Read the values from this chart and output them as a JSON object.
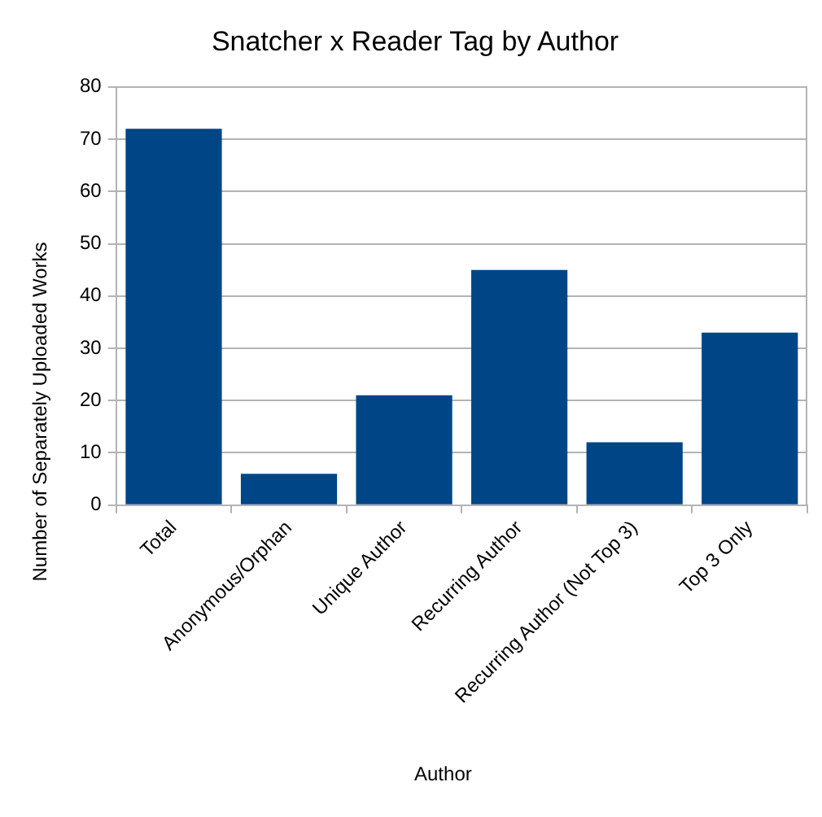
{
  "chart_data": {
    "type": "bar",
    "title": "Snatcher x Reader Tag by Author",
    "xlabel": "Author",
    "ylabel": "Number of Separately Uploaded Works",
    "categories": [
      "Total",
      "Anonymous/Orphan",
      "Unique Author",
      "Recurring Author",
      "Recurring Author (Not Top 3)",
      "Top 3 Only"
    ],
    "values": [
      72,
      6,
      21,
      45,
      12,
      33
    ],
    "color": "#004586",
    "ylim": [
      0,
      80
    ],
    "yticks": [
      0,
      10,
      20,
      30,
      40,
      50,
      60,
      70,
      80
    ],
    "grid": "y",
    "legend": false
  }
}
